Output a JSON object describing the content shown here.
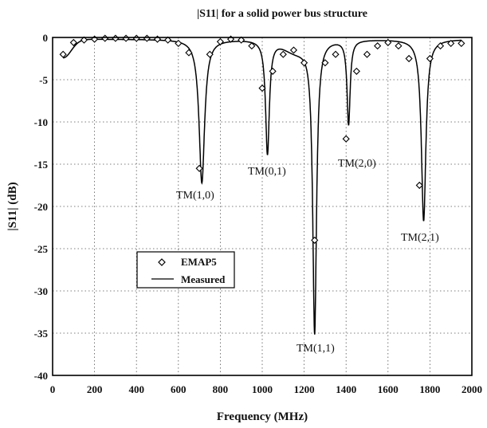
{
  "chart_data": {
    "type": "line",
    "title": "|S11| for a solid power bus structure",
    "xlabel": "Frequency (MHz)",
    "ylabel": "|S11|  (dB)",
    "xlim": [
      0,
      2000
    ],
    "ylim": [
      -40,
      0
    ],
    "xticks": [
      0,
      200,
      400,
      600,
      800,
      1000,
      1200,
      1400,
      1600,
      1800,
      2000
    ],
    "yticks": [
      0,
      -5,
      -10,
      -15,
      -20,
      -25,
      -30,
      -35,
      -40
    ],
    "grid": true,
    "legend_position": "lower-left",
    "series": [
      {
        "name": "EMAP5",
        "marker": "diamond",
        "x": [
          50,
          100,
          150,
          200,
          250,
          300,
          350,
          400,
          450,
          500,
          550,
          600,
          650,
          700,
          750,
          800,
          850,
          900,
          950,
          1000,
          1050,
          1100,
          1150,
          1200,
          1250,
          1300,
          1350,
          1400,
          1450,
          1500,
          1550,
          1600,
          1650,
          1700,
          1750,
          1800,
          1850,
          1900,
          1950
        ],
        "y": [
          -2.0,
          -0.6,
          -0.3,
          -0.2,
          -0.1,
          -0.1,
          -0.1,
          -0.1,
          -0.1,
          -0.2,
          -0.3,
          -0.7,
          -1.8,
          -15.5,
          -2.0,
          -0.5,
          -0.2,
          -0.3,
          -1.0,
          -6.0,
          -4.0,
          -2.0,
          -1.5,
          -3.0,
          -24.0,
          -3.0,
          -2.0,
          -12.0,
          -4.0,
          -2.0,
          -1.0,
          -0.6,
          -1.0,
          -2.5,
          -17.5,
          -2.5,
          -1.0,
          -0.7,
          -0.7
        ]
      },
      {
        "name": "Measured",
        "style": "solid"
      }
    ],
    "annotations": [
      "TM(1,0)",
      "TM(0,1)",
      "TM(1,1)",
      "TM(2,0)",
      "TM(2,1)"
    ]
  }
}
